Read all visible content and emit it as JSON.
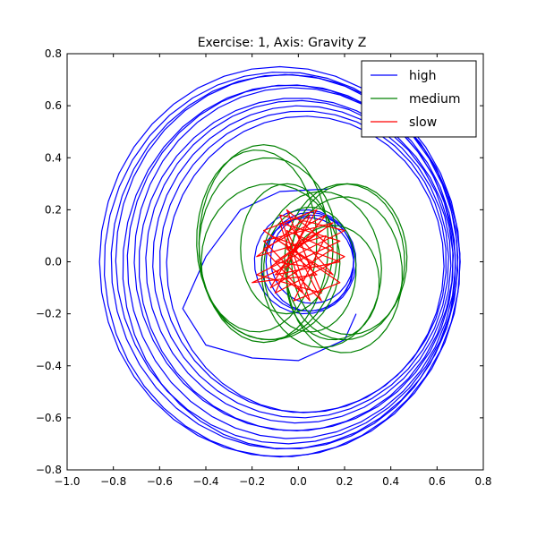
{
  "chart_data": {
    "type": "line",
    "title": "Exercise: 1, Axis: Gravity Z",
    "xlabel": "",
    "ylabel": "",
    "xlim": [
      -1.0,
      0.8
    ],
    "ylim": [
      -0.8,
      0.8
    ],
    "xticks": [
      -1.0,
      -0.8,
      -0.6,
      -0.4,
      -0.2,
      0.0,
      0.2,
      0.4,
      0.6,
      0.8
    ],
    "yticks": [
      -0.8,
      -0.6,
      -0.4,
      -0.2,
      0.0,
      0.2,
      0.4,
      0.6,
      0.8
    ],
    "xtick_labels": [
      "−1.0",
      "−0.8",
      "−0.6",
      "−0.4",
      "−0.2",
      "0.0",
      "0.2",
      "0.4",
      "0.6",
      "0.8"
    ],
    "ytick_labels": [
      "−0.8",
      "−0.6",
      "−0.4",
      "−0.2",
      "0.0",
      "0.2",
      "0.4",
      "0.6",
      "0.8"
    ],
    "grid": false,
    "legend_position": "top-right",
    "series": [
      {
        "name": "high",
        "color": "#0000ff",
        "shape": "concentric-orbits",
        "outer_loops": [
          {
            "cx": -0.08,
            "cy": 0.0,
            "rx": 0.78,
            "ry": 0.75
          },
          {
            "cx": -0.07,
            "cy": -0.01,
            "rx": 0.77,
            "ry": 0.74
          },
          {
            "cx": -0.06,
            "cy": 0.0,
            "rx": 0.75,
            "ry": 0.72
          },
          {
            "cx": -0.05,
            "cy": 0.01,
            "rx": 0.74,
            "ry": 0.71
          },
          {
            "cx": -0.04,
            "cy": -0.02,
            "rx": 0.72,
            "ry": 0.7
          },
          {
            "cx": -0.03,
            "cy": 0.0,
            "rx": 0.71,
            "ry": 0.68
          },
          {
            "cx": -0.02,
            "cy": 0.01,
            "rx": 0.69,
            "ry": 0.66
          },
          {
            "cx": -0.01,
            "cy": -0.01,
            "rx": 0.68,
            "ry": 0.64
          },
          {
            "cx": 0.0,
            "cy": 0.0,
            "rx": 0.66,
            "ry": 0.62
          },
          {
            "cx": 0.01,
            "cy": 0.0,
            "rx": 0.64,
            "ry": 0.6
          },
          {
            "cx": 0.02,
            "cy": 0.0,
            "rx": 0.62,
            "ry": 0.58
          },
          {
            "cx": 0.03,
            "cy": -0.01,
            "rx": 0.6,
            "ry": 0.57
          }
        ],
        "inner_loops": [
          {
            "cx": 0.05,
            "cy": 0.0,
            "rx": 0.19,
            "ry": 0.19
          },
          {
            "cx": 0.06,
            "cy": 0.01,
            "rx": 0.18,
            "ry": 0.17
          },
          {
            "cx": 0.04,
            "cy": -0.01,
            "rx": 0.2,
            "ry": 0.18
          },
          {
            "cx": 0.03,
            "cy": 0.0,
            "rx": 0.22,
            "ry": 0.2
          }
        ],
        "transition_path": [
          [
            0.13,
            0.28
          ],
          [
            -0.08,
            0.27
          ],
          [
            -0.25,
            0.2
          ],
          [
            -0.4,
            0.02
          ],
          [
            -0.5,
            -0.18
          ],
          [
            -0.4,
            -0.32
          ],
          [
            -0.2,
            -0.37
          ],
          [
            0.0,
            -0.38
          ],
          [
            0.2,
            -0.3
          ],
          [
            0.25,
            -0.2
          ]
        ]
      },
      {
        "name": "medium",
        "color": "#008000",
        "shape": "overlapping-orbits",
        "loops": [
          {
            "cx": -0.15,
            "cy": 0.07,
            "rx": 0.28,
            "ry": 0.38
          },
          {
            "cx": -0.13,
            "cy": 0.05,
            "rx": 0.3,
            "ry": 0.35
          },
          {
            "cx": -0.12,
            "cy": 0.0,
            "rx": 0.3,
            "ry": 0.3
          },
          {
            "cx": -0.18,
            "cy": 0.08,
            "rx": 0.26,
            "ry": 0.35
          },
          {
            "cx": 0.2,
            "cy": 0.0,
            "rx": 0.26,
            "ry": 0.3
          },
          {
            "cx": 0.22,
            "cy": 0.01,
            "rx": 0.25,
            "ry": 0.29
          },
          {
            "cx": 0.2,
            "cy": -0.05,
            "rx": 0.25,
            "ry": 0.3
          },
          {
            "cx": 0.1,
            "cy": -0.03,
            "rx": 0.26,
            "ry": 0.3
          },
          {
            "cx": 0.05,
            "cy": -0.03,
            "rx": 0.2,
            "ry": 0.24
          },
          {
            "cx": -0.05,
            "cy": 0.05,
            "rx": 0.2,
            "ry": 0.25
          },
          {
            "cx": 0.15,
            "cy": -0.08,
            "rx": 0.2,
            "ry": 0.22
          }
        ]
      },
      {
        "name": "slow",
        "color": "#ff0000",
        "shape": "zigzag-cluster",
        "points": [
          [
            -0.05,
            0.15
          ],
          [
            0.15,
            -0.05
          ],
          [
            -0.12,
            0.1
          ],
          [
            0.18,
            0.0
          ],
          [
            -0.1,
            -0.05
          ],
          [
            0.12,
            0.18
          ],
          [
            -0.15,
            0.05
          ],
          [
            0.05,
            -0.15
          ],
          [
            -0.08,
            0.18
          ],
          [
            0.2,
            0.12
          ],
          [
            -0.18,
            -0.05
          ],
          [
            0.1,
            -0.12
          ],
          [
            -0.05,
            0.2
          ],
          [
            0.15,
            0.05
          ],
          [
            -0.12,
            -0.1
          ],
          [
            0.08,
            0.2
          ],
          [
            -0.15,
            0.12
          ],
          [
            0.18,
            -0.08
          ],
          [
            -0.02,
            -0.15
          ],
          [
            0.12,
            0.1
          ],
          [
            -0.18,
            0.02
          ],
          [
            0.05,
            0.18
          ],
          [
            -0.1,
            -0.12
          ],
          [
            0.2,
            0.02
          ],
          [
            -0.05,
            0.12
          ],
          [
            0.1,
            -0.15
          ],
          [
            -0.15,
            0.08
          ],
          [
            0.15,
            0.15
          ],
          [
            -0.12,
            -0.02
          ],
          [
            0.02,
            -0.12
          ],
          [
            -0.08,
            0.15
          ],
          [
            0.18,
            0.08
          ],
          [
            -0.2,
            -0.08
          ],
          [
            0.08,
            -0.05
          ],
          [
            -0.05,
            0.05
          ],
          [
            0.1,
            0.12
          ],
          [
            -0.1,
            0.0
          ],
          [
            0.05,
            -0.02
          ],
          [
            0.0,
            0.1
          ]
        ]
      }
    ]
  }
}
